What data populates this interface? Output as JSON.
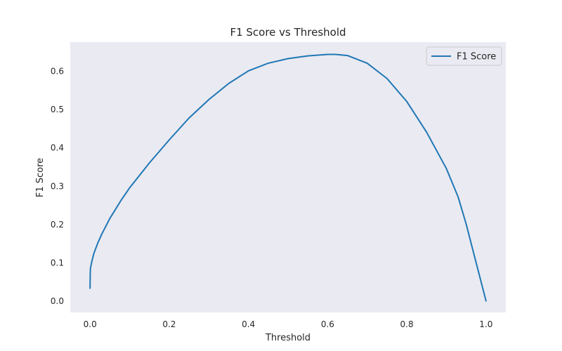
{
  "chart_data": {
    "type": "line",
    "title": "F1 Score vs Threshold",
    "xlabel": "Threshold",
    "ylabel": "F1 Score",
    "xlim": [
      -0.05,
      1.05
    ],
    "ylim": [
      -0.03,
      0.675
    ],
    "xticks": [
      0.0,
      0.2,
      0.4,
      0.6,
      0.8,
      1.0
    ],
    "xtick_labels": [
      "0.0",
      "0.2",
      "0.4",
      "0.6",
      "0.8",
      "1.0"
    ],
    "yticks": [
      0.0,
      0.1,
      0.2,
      0.3,
      0.4,
      0.5,
      0.6
    ],
    "ytick_labels": [
      "0.0",
      "0.1",
      "0.2",
      "0.3",
      "0.4",
      "0.5",
      "0.6"
    ],
    "grid": false,
    "legend_position": "top-right",
    "background_color": "#eaeaf2",
    "series": [
      {
        "name": "F1 Score",
        "color": "#1f77b4",
        "x": [
          0.0,
          0.0005,
          0.001,
          0.005,
          0.01,
          0.02,
          0.03,
          0.05,
          0.08,
          0.1,
          0.15,
          0.2,
          0.25,
          0.3,
          0.35,
          0.4,
          0.45,
          0.5,
          0.55,
          0.6,
          0.62,
          0.65,
          0.7,
          0.75,
          0.8,
          0.85,
          0.9,
          0.93,
          0.95,
          0.97,
          0.98,
          0.99,
          1.0
        ],
        "y": [
          0.033,
          0.07,
          0.085,
          0.105,
          0.125,
          0.152,
          0.175,
          0.215,
          0.265,
          0.295,
          0.36,
          0.42,
          0.477,
          0.525,
          0.567,
          0.6,
          0.62,
          0.632,
          0.639,
          0.643,
          0.643,
          0.64,
          0.62,
          0.58,
          0.52,
          0.44,
          0.345,
          0.27,
          0.2,
          0.12,
          0.08,
          0.04,
          0.0
        ]
      }
    ]
  }
}
